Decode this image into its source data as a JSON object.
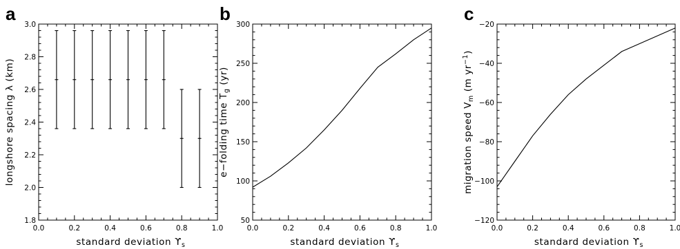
{
  "chart_data": [
    {
      "type": "scatter",
      "panel_letter": "a",
      "xlabel": "standard deviation ϒ",
      "xlabel_sub": "s",
      "ylabel": "longshore spacing λ (km)",
      "ylabel_sub": "",
      "ylabel_tail": "",
      "ylabel_sup": "",
      "ylabel_end": "",
      "xlim": [
        0.0,
        1.0
      ],
      "ylim": [
        1.8,
        3.0
      ],
      "xticks": [
        "0.0",
        "0.2",
        "0.4",
        "0.6",
        "0.8",
        "1.0"
      ],
      "yticks": [
        "1.8",
        "2.0",
        "2.2",
        "2.4",
        "2.6",
        "2.8",
        "3.0"
      ],
      "x": [
        0.1,
        0.2,
        0.3,
        0.4,
        0.5,
        0.6,
        0.7,
        0.8,
        0.9
      ],
      "y": [
        2.66,
        2.66,
        2.66,
        2.66,
        2.66,
        2.66,
        2.66,
        2.3,
        2.3
      ],
      "y_low": [
        2.36,
        2.36,
        2.36,
        2.36,
        2.36,
        2.36,
        2.36,
        2.0,
        2.0
      ],
      "y_high": [
        2.96,
        2.96,
        2.96,
        2.96,
        2.96,
        2.96,
        2.96,
        2.6,
        2.6
      ]
    },
    {
      "type": "line",
      "panel_letter": "b",
      "xlabel": "standard deviation ϒ",
      "xlabel_sub": "s",
      "ylabel": "e−folding time T",
      "ylabel_sub": "g",
      "ylabel_tail": " (yr)",
      "ylabel_sup": "",
      "ylabel_end": "",
      "xlim": [
        0.0,
        1.0
      ],
      "ylim": [
        50,
        300
      ],
      "xticks": [
        "0.0",
        "0.2",
        "0.4",
        "0.6",
        "0.8",
        "1.0"
      ],
      "yticks": [
        "50",
        "100",
        "150",
        "200",
        "250",
        "300"
      ],
      "x": [
        0.0,
        0.1,
        0.2,
        0.3,
        0.4,
        0.5,
        0.6,
        0.7,
        0.8,
        0.9,
        1.0
      ],
      "y": [
        92,
        106,
        123,
        142,
        165,
        190,
        218,
        245,
        262,
        280,
        295
      ]
    },
    {
      "type": "line",
      "panel_letter": "c",
      "xlabel": "standard deviation ϒ",
      "xlabel_sub": "s",
      "ylabel": "migration speed V",
      "ylabel_sub": "m",
      "ylabel_tail": " (m yr",
      "ylabel_sup": "−1",
      "ylabel_end": ")",
      "xlim": [
        0.0,
        1.0
      ],
      "ylim": [
        -120,
        -20
      ],
      "xticks": [
        "0.0",
        "0.2",
        "0.4",
        "0.6",
        "0.8",
        "1.0"
      ],
      "yticks": [
        "−120",
        "−100",
        "−80",
        "−60",
        "−40",
        "−20"
      ],
      "x": [
        0.0,
        0.1,
        0.2,
        0.3,
        0.4,
        0.5,
        0.6,
        0.7,
        0.8,
        0.9,
        1.0
      ],
      "y": [
        -103,
        -90,
        -77,
        -66,
        -56,
        -48,
        -41,
        -34,
        -30,
        -26,
        -22
      ]
    }
  ]
}
